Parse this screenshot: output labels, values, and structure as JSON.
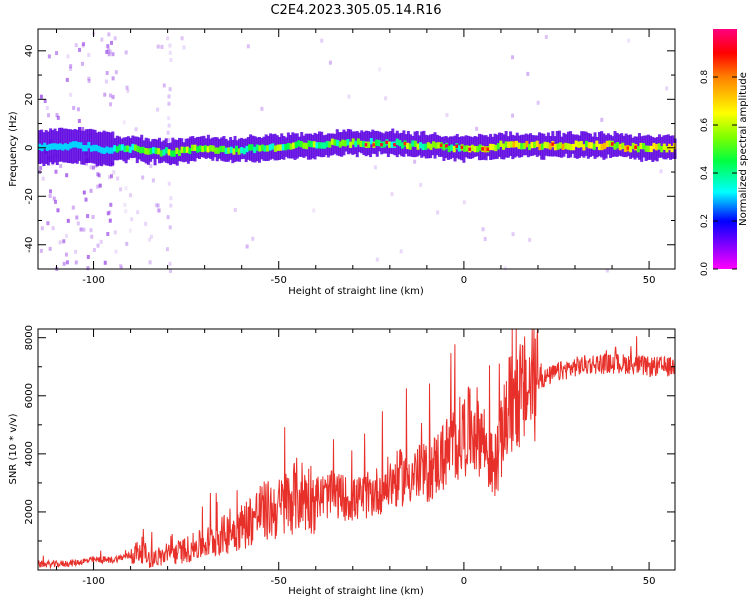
{
  "title": "C2E4.2023.305.05.14.R16",
  "chart_data": [
    {
      "type": "heatmap",
      "xlabel": "Height of straight line (km)",
      "ylabel": "Frequency (Hz)",
      "xlim": [
        -115,
        57
      ],
      "ylim": [
        -50,
        49
      ],
      "xticks": [
        -100,
        -50,
        0,
        50
      ],
      "yticks": [
        -40,
        -20,
        0,
        20,
        40
      ],
      "colorbar": {
        "label": "Normalized spectral amplitude",
        "range": [
          0,
          1
        ],
        "ticks": [
          0.0,
          0.2,
          0.4,
          0.6,
          0.8
        ],
        "tick_labels": [
          "0.0",
          "0.2",
          "0.4",
          "0.6",
          "0.8"
        ]
      },
      "ridge": {
        "x": [
          -115,
          -105,
          -100,
          -95,
          -90,
          -85,
          -80,
          -75,
          -70,
          -65,
          -60,
          -55,
          -50,
          -45,
          -40,
          -35,
          -30,
          -25,
          -20,
          -15,
          -10,
          -5,
          0,
          5,
          10,
          15,
          20,
          25,
          30,
          35,
          40,
          45,
          50,
          55
        ],
        "freq": [
          0,
          1,
          0,
          -1,
          0,
          -1,
          -2,
          -1,
          0,
          -1,
          -1,
          0,
          0,
          1,
          1,
          2,
          2,
          2,
          2,
          1,
          1,
          0,
          0,
          0,
          1,
          1,
          1,
          1,
          1,
          1,
          1,
          0,
          0,
          0
        ]
      }
    },
    {
      "type": "line",
      "xlabel": "Height of straight line (km)",
      "ylabel": "SNR (10 * v/v)",
      "xlim": [
        -115,
        57
      ],
      "ylim": [
        0,
        8300
      ],
      "xticks": [
        -100,
        -50,
        0,
        50
      ],
      "yticks": [
        2000,
        4000,
        6000,
        8000
      ],
      "series": [
        {
          "color": "#e8302a",
          "x": [
            -115,
            -110,
            -105,
            -100,
            -95,
            -90,
            -87,
            -85,
            -80,
            -75,
            -70,
            -65,
            -60,
            -55,
            -50,
            -45,
            -40,
            -35,
            -30,
            -25,
            -20,
            -15,
            -10,
            -5,
            0,
            3,
            5,
            8,
            10,
            12,
            15,
            20,
            25,
            30,
            35,
            40,
            45,
            50,
            55
          ],
          "y": [
            200,
            200,
            250,
            350,
            350,
            500,
            700,
            400,
            500,
            700,
            900,
            1200,
            1500,
            2000,
            2100,
            2600,
            2500,
            2600,
            2400,
            2600,
            3000,
            3300,
            3300,
            4000,
            4700,
            4900,
            4600,
            3400,
            4400,
            5600,
            6000,
            6500,
            6800,
            7000,
            7100,
            7100,
            7100,
            7000,
            7000
          ]
        }
      ]
    }
  ]
}
